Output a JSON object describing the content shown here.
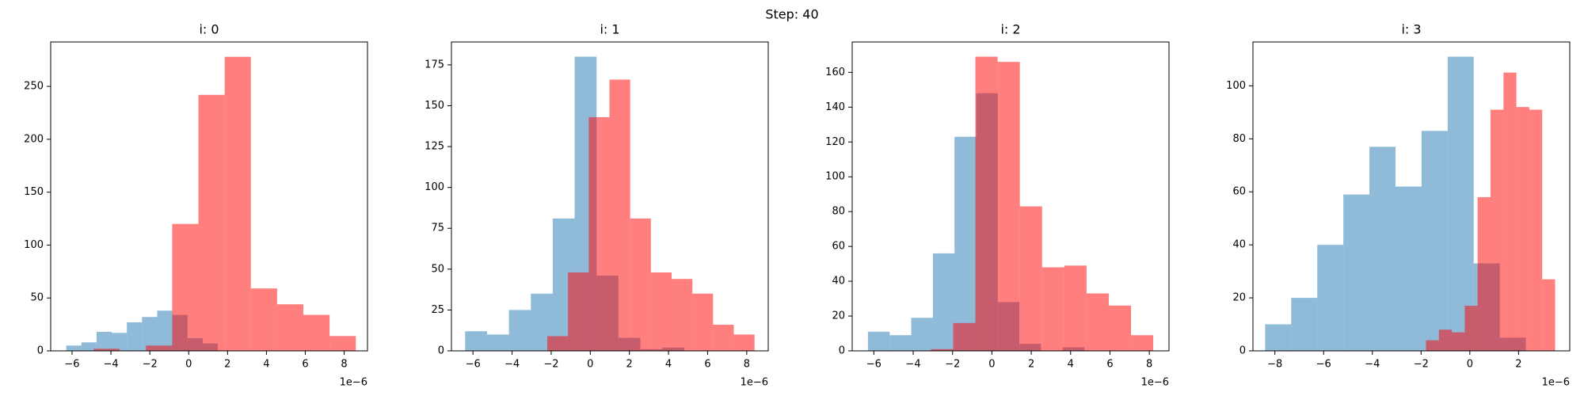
{
  "title": "Step: 40",
  "chart_data": [
    {
      "type": "histogram",
      "title": "i: 0",
      "x_offset_label": "1e−6",
      "xlim": [
        -7.1,
        9.2
      ],
      "ylim": [
        0,
        292
      ],
      "xticks": [
        {
          "value": -6,
          "label": "−6"
        },
        {
          "value": -4,
          "label": "−4"
        },
        {
          "value": -2,
          "label": "−2"
        },
        0,
        2,
        4,
        6,
        8
      ],
      "yticks": [
        0,
        50,
        100,
        150,
        200,
        250
      ],
      "series": [
        {
          "color": "#1f77b4",
          "alpha": 0.5,
          "bins": [
            -6.3,
            -5.52,
            -4.74,
            -3.96,
            -3.18,
            -2.4,
            -1.62,
            -0.84,
            -0.06,
            0.72,
            1.5
          ],
          "values": [
            5,
            8,
            18,
            17,
            27,
            32,
            38,
            34,
            12,
            7
          ]
        },
        {
          "color": "#ff0000",
          "alpha": 0.5,
          "bins": [
            -4.9,
            -3.55,
            -2.2,
            -0.85,
            0.5,
            1.85,
            3.2,
            4.55,
            5.9,
            7.25,
            8.6
          ],
          "values": [
            2,
            0,
            5,
            120,
            242,
            278,
            59,
            44,
            34,
            14
          ]
        }
      ]
    },
    {
      "type": "histogram",
      "title": "i: 1",
      "x_offset_label": "1e−6",
      "xlim": [
        -7.1,
        9.1
      ],
      "ylim": [
        0,
        189
      ],
      "xticks": [
        {
          "value": -6,
          "label": "−6"
        },
        {
          "value": -4,
          "label": "−4"
        },
        {
          "value": -2,
          "label": "−2"
        },
        0,
        2,
        4,
        6,
        8
      ],
      "yticks": [
        0,
        25,
        50,
        75,
        100,
        125,
        150,
        175
      ],
      "series": [
        {
          "color": "#1f77b4",
          "alpha": 0.5,
          "bins": [
            -6.4,
            -5.28,
            -4.16,
            -3.04,
            -1.92,
            -0.8,
            0.32,
            1.44,
            2.56,
            3.68,
            4.8
          ],
          "values": [
            12,
            10,
            25,
            35,
            81,
            180,
            46,
            8,
            1,
            2
          ]
        },
        {
          "color": "#ff0000",
          "alpha": 0.5,
          "bins": [
            -2.2,
            -1.14,
            -0.08,
            0.98,
            2.04,
            3.1,
            4.16,
            5.22,
            6.28,
            7.34,
            8.4
          ],
          "values": [
            9,
            48,
            143,
            166,
            81,
            48,
            44,
            35,
            16,
            10
          ]
        }
      ]
    },
    {
      "type": "histogram",
      "title": "i: 2",
      "x_offset_label": "1e−6",
      "xlim": [
        -7.1,
        9.0
      ],
      "ylim": [
        0,
        177.45
      ],
      "xticks": [
        {
          "value": -6,
          "label": "−6"
        },
        {
          "value": -4,
          "label": "−4"
        },
        {
          "value": -2,
          "label": "−2"
        },
        0,
        2,
        4,
        6,
        8
      ],
      "yticks": [
        0,
        20,
        40,
        60,
        80,
        100,
        120,
        140,
        160
      ],
      "series": [
        {
          "color": "#1f77b4",
          "alpha": 0.5,
          "bins": [
            -6.3,
            -5.2,
            -4.1,
            -3.0,
            -1.9,
            -0.8,
            0.3,
            1.4,
            2.5,
            3.6,
            4.7
          ],
          "values": [
            11,
            9,
            19,
            56,
            123,
            148,
            28,
            4,
            0,
            2
          ]
        },
        {
          "color": "#ff0000",
          "alpha": 0.5,
          "bins": [
            -3.1,
            -1.97,
            -0.84,
            0.29,
            1.42,
            2.55,
            3.68,
            4.81,
            5.94,
            7.07,
            8.2
          ],
          "values": [
            1,
            16,
            169,
            166,
            83,
            48,
            49,
            33,
            26,
            9
          ]
        }
      ]
    },
    {
      "type": "histogram",
      "title": "i: 3",
      "x_offset_label": "1e−6",
      "xlim": [
        -8.9,
        4.1
      ],
      "ylim": [
        0,
        116.55
      ],
      "xticks": [
        {
          "value": -8,
          "label": "−8"
        },
        {
          "value": -6,
          "label": "−6"
        },
        {
          "value": -4,
          "label": "−4"
        },
        {
          "value": -2,
          "label": "−2"
        },
        0,
        2
      ],
      "yticks": [
        0,
        20,
        40,
        60,
        80,
        100
      ],
      "series": [
        {
          "color": "#1f77b4",
          "alpha": 0.5,
          "bins": [
            -8.4,
            -7.33,
            -6.26,
            -5.19,
            -4.12,
            -3.05,
            -1.98,
            -0.91,
            0.16,
            1.23,
            2.3
          ],
          "values": [
            10,
            20,
            40,
            59,
            77,
            62,
            83,
            111,
            33,
            5
          ]
        },
        {
          "color": "#ff0000",
          "alpha": 0.5,
          "bins": [
            -1.8,
            -1.27,
            -0.74,
            -0.21,
            0.32,
            0.85,
            1.38,
            1.91,
            2.44,
            2.97,
            3.5
          ],
          "values": [
            4,
            8,
            7,
            17,
            58,
            91,
            105,
            92,
            91,
            27
          ]
        }
      ]
    }
  ]
}
